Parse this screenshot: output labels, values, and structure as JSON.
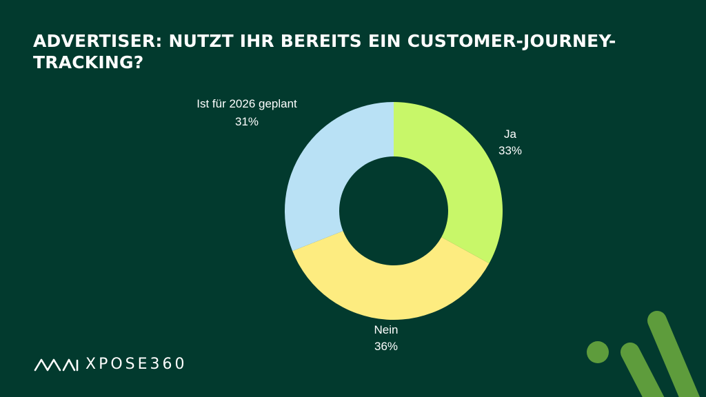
{
  "title": "Advertiser: Nutzt ihr bereits ein Customer-Journey-Tracking?",
  "logo": {
    "text": "XPOSE360",
    "mark_icon": "mai-logo-icon"
  },
  "colors": {
    "background": "#023a2e",
    "ja": "#c8f769",
    "nein": "#fdec80",
    "geplant": "#b9e1f5",
    "accent": "#5e9c3c"
  },
  "chart_data": {
    "type": "pie",
    "donut": true,
    "title": "Advertiser: Nutzt ihr bereits ein Customer-Journey-Tracking?",
    "slices": [
      {
        "label": "Ja",
        "value": 33,
        "display": "33%"
      },
      {
        "label": "Nein",
        "value": 36,
        "display": "36%"
      },
      {
        "label": "Ist für 2026 geplant",
        "value": 31,
        "display": "31%"
      }
    ]
  }
}
